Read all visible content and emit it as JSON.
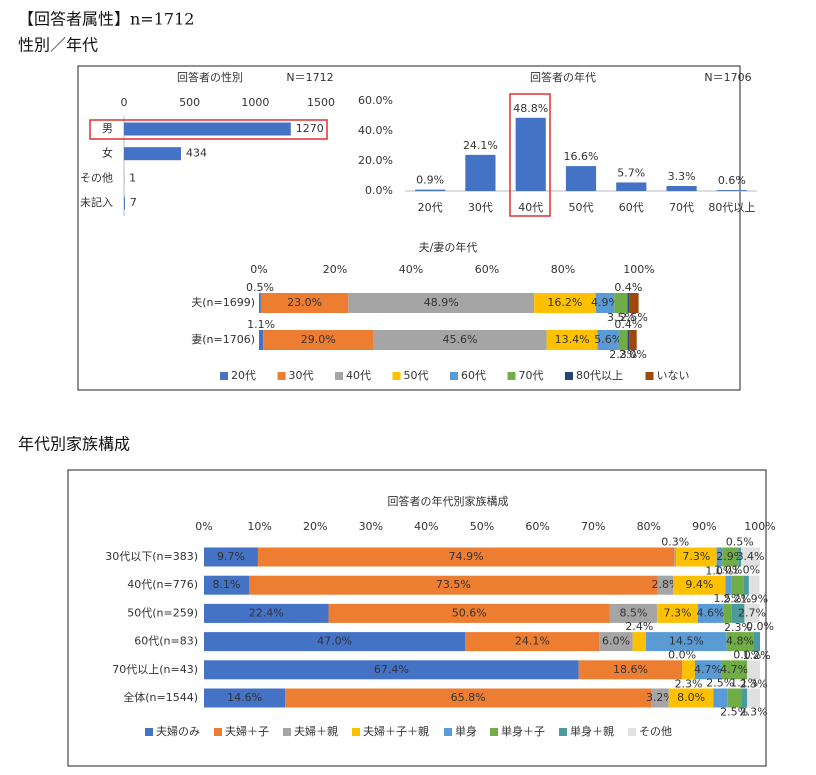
{
  "headings": [
    "【回答者属性】n=1712",
    "性別／年代",
    "年代別家族構成"
  ],
  "chart_data": [
    {
      "type": "barh",
      "title": "回答者の性別",
      "annotation": "N＝1712",
      "categories": [
        "男",
        "女",
        "その他",
        "未記入"
      ],
      "values": [
        1270,
        434,
        1,
        7
      ],
      "color": "#4472c4",
      "xlim": [
        0,
        1500
      ],
      "xticks": [
        0,
        500,
        1000,
        1500
      ]
    },
    {
      "type": "bar",
      "title": "回答者の年代",
      "annotation": "N＝1706",
      "categories": [
        "20代",
        "30代",
        "40代",
        "50代",
        "60代",
        "70代",
        "80代以上"
      ],
      "values": [
        0.9,
        24.1,
        48.8,
        16.6,
        5.7,
        3.3,
        0.6
      ],
      "value_labels": [
        "0.9%",
        "24.1%",
        "48.8%",
        "16.6%",
        "5.7%",
        "3.3%",
        "0.6%"
      ],
      "color": "#4472c4",
      "ylim": [
        0,
        60
      ],
      "yticks": [
        {
          "value": 0,
          "label": "0.0%"
        },
        {
          "value": 20,
          "label": "20.0%"
        },
        {
          "value": 40,
          "label": "40.0%"
        },
        {
          "value": 60,
          "label": "60.0%"
        }
      ]
    },
    {
      "type": "stacked_barh",
      "title": "夫/妻の年代",
      "categories": [
        "夫(n=1699)",
        "妻(n=1706)"
      ],
      "xlim": [
        0,
        100
      ],
      "xticks": [
        {
          "value": 0,
          "label": "0%"
        },
        {
          "value": 20,
          "label": "20%"
        },
        {
          "value": 40,
          "label": "40%"
        },
        {
          "value": 60,
          "label": "60%"
        },
        {
          "value": 80,
          "label": "80%"
        },
        {
          "value": 100,
          "label": "100%"
        }
      ],
      "series": [
        {
          "name": "20代",
          "color": "#4472c4",
          "values": [
            0.5,
            1.1
          ],
          "value_labels": [
            "0.5%",
            "1.1%"
          ]
        },
        {
          "name": "30代",
          "color": "#ed7d31",
          "values": [
            23.0,
            29.0
          ],
          "value_labels": [
            "23.0%",
            "29.0%"
          ]
        },
        {
          "name": "40代",
          "color": "#a5a5a5",
          "values": [
            48.9,
            45.6
          ],
          "value_labels": [
            "48.9%",
            "45.6%"
          ]
        },
        {
          "name": "50代",
          "color": "#ffc000",
          "values": [
            16.2,
            13.4
          ],
          "value_labels": [
            "16.2%",
            "13.4%"
          ]
        },
        {
          "name": "60代",
          "color": "#5b9bd5",
          "values": [
            4.9,
            5.6
          ],
          "value_labels": [
            "4.9%",
            "5.6%"
          ]
        },
        {
          "name": "70代",
          "color": "#70ad47",
          "values": [
            3.5,
            2.3
          ],
          "value_labels": [
            "3.5%",
            "2.3%"
          ]
        },
        {
          "name": "80代以上",
          "color": "#264478",
          "values": [
            0.4,
            0.4
          ],
          "value_labels": [
            "0.4%",
            "0.4%"
          ]
        },
        {
          "name": "いない",
          "color": "#9e480e",
          "values": [
            2.5,
            2.0
          ],
          "value_labels": [
            "2.5%",
            "2.0%"
          ]
        }
      ]
    },
    {
      "type": "stacked_barh",
      "title": "回答者の年代別家族構成",
      "categories": [
        "30代以下(n=383)",
        "40代(n=776)",
        "50代(n=259)",
        "60代(n=83)",
        "70代以上(n=43)",
        "全体(n=1544)"
      ],
      "xlim": [
        0,
        100
      ],
      "xticks": [
        {
          "value": 0,
          "label": "0%"
        },
        {
          "value": 10,
          "label": "10%"
        },
        {
          "value": 20,
          "label": "20%"
        },
        {
          "value": 30,
          "label": "30%"
        },
        {
          "value": 40,
          "label": "40%"
        },
        {
          "value": 50,
          "label": "50%"
        },
        {
          "value": 60,
          "label": "60%"
        },
        {
          "value": 70,
          "label": "70%"
        },
        {
          "value": 80,
          "label": "80%"
        },
        {
          "value": 90,
          "label": "90%"
        },
        {
          "value": 100,
          "label": "100%"
        }
      ],
      "series": [
        {
          "name": "夫婦のみ",
          "color": "#4472c4",
          "values": [
            9.7,
            8.1,
            22.4,
            47.0,
            67.4,
            14.6
          ],
          "value_labels": [
            "9.7%",
            "8.1%",
            "22.4%",
            "47.0%",
            "67.4%",
            "14.6%"
          ]
        },
        {
          "name": "夫婦＋子",
          "color": "#ed7d31",
          "values": [
            74.9,
            73.5,
            50.6,
            24.1,
            18.6,
            65.8
          ],
          "value_labels": [
            "74.9%",
            "73.5%",
            "50.6%",
            "24.1%",
            "18.6%",
            "65.8%"
          ]
        },
        {
          "name": "夫婦＋親",
          "color": "#a5a5a5",
          "values": [
            0.3,
            2.8,
            8.5,
            6.0,
            0.0,
            3.2
          ],
          "value_labels": [
            "0.3%",
            "2.8%",
            "8.5%",
            "6.0%",
            "0.0%",
            "3.2%"
          ]
        },
        {
          "name": "夫婦＋子＋親",
          "color": "#ffc000",
          "values": [
            7.3,
            9.4,
            7.3,
            2.4,
            2.3,
            8.0
          ],
          "value_labels": [
            "7.3%",
            "9.4%",
            "7.3%",
            "2.4%",
            "2.3%",
            "8.0%"
          ]
        },
        {
          "name": "単身",
          "color": "#5b9bd5",
          "values": [
            1.0,
            1.0,
            4.6,
            14.5,
            4.7,
            2.5
          ],
          "value_labels": [
            "1.0%",
            "1.0%",
            "4.6%",
            "14.5%",
            "4.7%",
            "2.5%"
          ]
        },
        {
          "name": "単身＋子",
          "color": "#70ad47",
          "values": [
            2.9,
            2.2,
            1.5,
            4.8,
            4.7,
            2.5
          ],
          "value_labels": [
            "2.9%",
            "2.2%",
            "1.5%",
            "4.8%",
            "4.7%",
            "2.5%"
          ]
        },
        {
          "name": "単身＋親",
          "color": "#4a9a9e",
          "values": [
            0.5,
            1.0,
            2.3,
            1.2,
            0.0,
            1.1
          ],
          "value_labels": [
            "0.5%",
            "1.0%",
            "2.3%",
            "1.2%",
            "0.0%",
            "1.1%"
          ]
        },
        {
          "name": "その他",
          "color": "#e0e0e0",
          "values": [
            3.4,
            1.9,
            2.7,
            0.0,
            2.3,
            2.3
          ],
          "value_labels": [
            "3.4%",
            "1.9%",
            "2.7%",
            "0.0%",
            "2.3%",
            "2.3%"
          ]
        }
      ]
    }
  ]
}
